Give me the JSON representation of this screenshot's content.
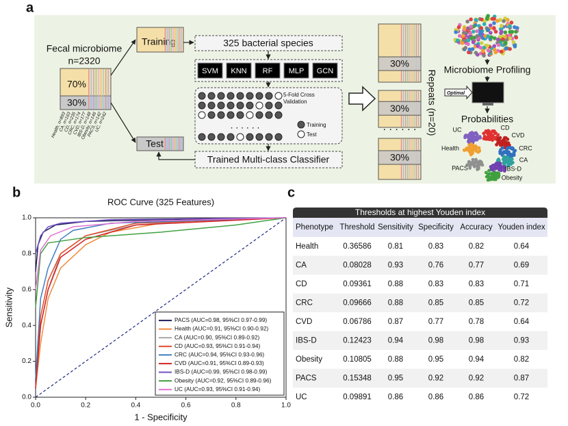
{
  "panel_a": {
    "label": "a",
    "title": "Fecal microbiome",
    "n": "n=2320",
    "train_pct": "70%",
    "test_pct": "30%",
    "groups": [
      "Health, n=893",
      "CA, n=163",
      "CD, n=235",
      "CRC, n=174",
      "CVD, n=177",
      "IBS-D, n=148",
      "Obesity, n=146",
      "PACS, n=142",
      "UC, n=242"
    ],
    "training": "Training",
    "test": "Test",
    "features": "325 bacterial species",
    "models": [
      "SVM",
      "KNN",
      "RF",
      "MLP",
      "GCN"
    ],
    "cv": "5-Fold Cross Validation",
    "cv_legend": [
      "Training",
      "Test"
    ],
    "classifier": "Trained Multi-class Classifier",
    "repeat_pct": [
      "30%",
      "30%",
      "30%"
    ],
    "repeats": "Repeats (n=20)",
    "profiling": "Microbiome Profiling",
    "optimal": "Optimal",
    "probabilities": "Probabilities",
    "classes": [
      "UC",
      "CD",
      "CVD",
      "Health",
      "CRC",
      "CA",
      "PACS",
      "IBS-D",
      "Obesity"
    ]
  },
  "panel_b_label": "b",
  "chart_data": {
    "type": "line",
    "title": "ROC Curve (325 Features)",
    "xlabel": "1 - Specificity",
    "ylabel": "Sensitivity",
    "xlim": [
      0,
      1
    ],
    "ylim": [
      0,
      1
    ],
    "xticks": [
      {
        "value": 0,
        "label": "0.0"
      },
      0.2,
      0.4,
      0.6,
      0.8,
      {
        "value": 1,
        "label": "1.0"
      }
    ],
    "yticks": [
      {
        "value": 0,
        "label": "0.0"
      },
      0.2,
      0.4,
      0.6,
      0.8,
      {
        "value": 1,
        "label": "1.0"
      }
    ],
    "legend": "lower right",
    "series": [
      {
        "name": "PACS (AUC=0.98, 95%CI 0.97-0.99)",
        "color": "#1c1c5a",
        "x": [
          0,
          0.01,
          0.03,
          0.08,
          0.2,
          0.5,
          1
        ],
        "values": [
          0.7,
          0.85,
          0.92,
          0.96,
          0.98,
          0.99,
          1
        ]
      },
      {
        "name": "Health (AUC=0.91, 95%CI 0.90-0.92)",
        "color": "#f08a3c",
        "x": [
          0,
          0.02,
          0.05,
          0.1,
          0.2,
          0.3,
          0.5,
          0.7,
          1
        ],
        "values": [
          0.05,
          0.3,
          0.55,
          0.72,
          0.85,
          0.92,
          0.97,
          0.99,
          1
        ]
      },
      {
        "name": "CA (AUC=0.90, 95%CI 0.89-0.92)",
        "color": "#a8a8a8",
        "x": [
          0,
          0.02,
          0.05,
          0.1,
          0.2,
          0.4,
          0.7,
          1
        ],
        "values": [
          0.05,
          0.4,
          0.6,
          0.8,
          0.9,
          0.96,
          0.99,
          1
        ]
      },
      {
        "name": "CD (AUC=0.93, 95%CI 0.91-0.94)",
        "color": "#e04a24",
        "x": [
          0,
          0.02,
          0.05,
          0.1,
          0.2,
          0.4,
          1
        ],
        "values": [
          0.1,
          0.45,
          0.65,
          0.8,
          0.9,
          0.97,
          1
        ]
      },
      {
        "name": "CRC (AUC=0.94, 95%CI 0.93-0.96)",
        "color": "#3f7fbf",
        "x": [
          0,
          0.02,
          0.05,
          0.1,
          0.15,
          0.3,
          1
        ],
        "values": [
          0.1,
          0.55,
          0.72,
          0.88,
          0.93,
          0.97,
          1
        ]
      },
      {
        "name": "CVD (AUC=0.91, 95%CI 0.89-0.93)",
        "color": "#d42020",
        "x": [
          0,
          0.02,
          0.05,
          0.1,
          0.2,
          0.4,
          1
        ],
        "values": [
          0.05,
          0.4,
          0.6,
          0.78,
          0.88,
          0.96,
          1
        ]
      },
      {
        "name": "IBS-D (AUC=0.99, 95%CI 0.98-0.99)",
        "color": "#7050c0",
        "x": [
          0,
          0.02,
          0.05,
          0.1,
          0.3,
          1
        ],
        "values": [
          0.8,
          0.9,
          0.95,
          0.97,
          0.99,
          1
        ]
      },
      {
        "name": "Obesity (AUC=0.92, 95%CI 0.89-0.96)",
        "color": "#40a040",
        "x": [
          0,
          0.02,
          0.05,
          0.2,
          0.5,
          0.8,
          1
        ],
        "values": [
          0.5,
          0.8,
          0.86,
          0.89,
          0.92,
          0.96,
          1
        ]
      },
      {
        "name": "UC (AUC=0.93, 95%CI 0.91-0.94)",
        "color": "#e070d0",
        "x": [
          0,
          0.02,
          0.06,
          0.15,
          0.4,
          1
        ],
        "values": [
          0.6,
          0.82,
          0.9,
          0.95,
          0.98,
          1
        ]
      }
    ]
  },
  "panel_c_label": "c",
  "table": {
    "title": "Thresholds at highest Youden index",
    "header": [
      "Phenotype",
      "Threshold",
      "Sensitivity",
      "Specificity",
      "Accuracy",
      "Youden index"
    ],
    "rows": [
      [
        "Health",
        0.36586,
        0.81,
        0.83,
        0.82,
        0.64
      ],
      [
        "CA",
        0.08028,
        0.93,
        0.76,
        0.77,
        0.69
      ],
      [
        "CD",
        0.09361,
        0.88,
        0.83,
        0.83,
        0.71
      ],
      [
        "CRC",
        0.09666,
        0.88,
        0.85,
        0.85,
        0.72
      ],
      [
        "CVD",
        0.06786,
        0.87,
        0.77,
        0.78,
        0.64
      ],
      [
        "IBS-D",
        0.12423,
        0.94,
        0.98,
        0.98,
        0.93
      ],
      [
        "Obesity",
        0.10805,
        0.88,
        0.95,
        0.94,
        0.82
      ],
      [
        "PACS",
        0.15348,
        0.95,
        0.92,
        0.92,
        0.87
      ],
      [
        "UC",
        0.09891,
        0.86,
        0.86,
        0.86,
        0.72
      ]
    ]
  }
}
